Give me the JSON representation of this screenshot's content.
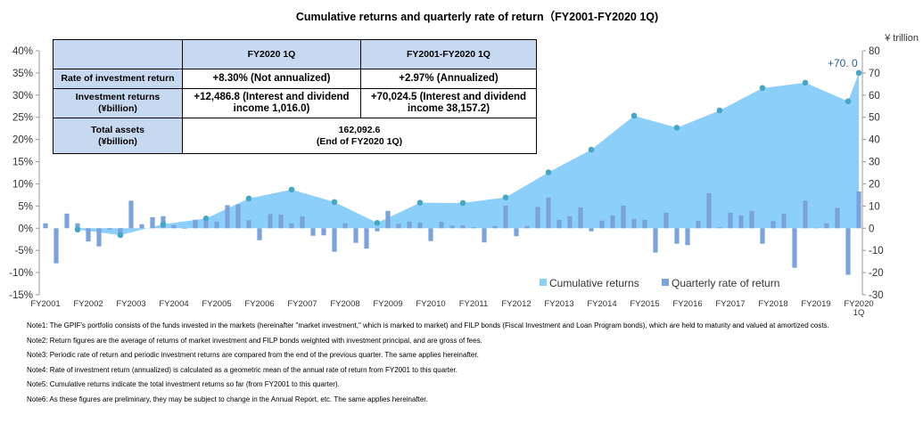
{
  "title": "Cumulative returns and quarterly rate of return（FY2001-FY2020 1Q)",
  "table": {
    "headers": [
      "",
      "FY2020 1Q",
      "FY2001-FY2020 1Q"
    ],
    "rows": [
      {
        "label": "Rate of investment return",
        "label2": "",
        "q": "+8.30% (Not annualized)",
        "q2": "",
        "cum": "+2.97% (Annualized)",
        "cum2": ""
      },
      {
        "label": "Investment returns",
        "label2": "(¥billion)",
        "q": "+12,486.8 (Interest and dividend",
        "q2": "income 1,016.0)",
        "cum": "+70,024.5 (Interest and dividend",
        "cum2": "income 38,157.2)"
      }
    ],
    "total": {
      "label": "Total assets",
      "label2": "(¥billion)",
      "value": "162,092.6",
      "value2": "(End of FY2020 1Q)"
    }
  },
  "chart_data": {
    "type": "bar+area",
    "title": "Cumulative returns and quarterly rate of return（FY2001-FY2020 1Q)",
    "left_axis": {
      "ylim": [
        -15,
        40
      ],
      "ticks": [
        "40%",
        "35%",
        "30%",
        "25%",
        "20%",
        "15%",
        "10%",
        "5%",
        "0%",
        "-5%",
        "-10%",
        "-15%"
      ]
    },
    "right_axis": {
      "label": "¥ trillion",
      "ylim": [
        -30,
        80
      ],
      "ticks": [
        "80",
        "70",
        "60",
        "50",
        "40",
        "30",
        "20",
        "10",
        "0",
        "-10",
        "-20",
        "-30"
      ]
    },
    "x_tick_labels": [
      "FY2001",
      "FY2002",
      "FY2003",
      "FY2004",
      "FY2005",
      "FY2006",
      "FY2007",
      "FY2008",
      "FY2009",
      "FY2010",
      "FY2011",
      "FY2012",
      "FY2013",
      "FY2014",
      "FY2015",
      "FY2016",
      "FY2017",
      "FY2018",
      "FY2019",
      "FY2020"
    ],
    "x_last_sublabel": "1Q",
    "legend": {
      "placement": "bottom-right",
      "items": [
        "Cumulative returns",
        "Quarterly rate of return"
      ]
    },
    "series": [
      {
        "name": "Quarterly rate of return",
        "axis": "left",
        "unit": "%",
        "color": "#7aa3dc",
        "values": [
          1.1,
          -7.9,
          3.3,
          1.1,
          -3.0,
          -4.1,
          -0.3,
          -1.5,
          6.2,
          0.9,
          2.5,
          2.7,
          0.7,
          -0.1,
          1.9,
          2.0,
          1.5,
          5.2,
          5.4,
          1.8,
          -2.7,
          3.2,
          3.1,
          1.1,
          2.7,
          -1.7,
          -1.6,
          -5.3,
          1.1,
          -3.3,
          -4.6,
          -0.7,
          3.9,
          1.0,
          1.5,
          1.3,
          -2.9,
          1.5,
          0.6,
          0.7,
          0.2,
          -3.2,
          0.5,
          5.1,
          -1.8,
          0.5,
          4.8,
          6.9,
          1.9,
          2.7,
          4.7,
          -0.7,
          1.7,
          2.9,
          5.1,
          2.1,
          1.9,
          -5.5,
          3.5,
          -3.5,
          -3.8,
          1.7,
          7.9,
          0.2,
          3.5,
          2.9,
          3.9,
          -3.5,
          1.6,
          3.3,
          -8.9,
          6.2,
          0.1,
          1.1,
          4.6,
          -10.5,
          8.3
        ]
      },
      {
        "name": "Cumulative returns",
        "axis": "right",
        "unit": "¥ trillion",
        "color": "#8dcffb",
        "marker_color": "#45a7c3",
        "points": [
          "FY2001",
          "FY2002",
          "FY2003",
          "FY2004",
          "FY2005",
          "FY2006",
          "FY2007",
          "FY2008",
          "FY2009",
          "FY2010",
          "FY2011",
          "FY2012",
          "FY2013",
          "FY2014",
          "FY2015",
          "FY2016",
          "FY2017",
          "FY2018",
          "FY2019",
          "FY2020 1Q"
        ],
        "values": [
          -0.6,
          -3.1,
          1.8,
          4.4,
          13.4,
          17.4,
          11.8,
          2.4,
          11.5,
          11.4,
          13.9,
          25.2,
          35.4,
          50.7,
          45.3,
          53.1,
          63.2,
          65.6,
          57.2,
          70.0
        ]
      }
    ],
    "annotation": "+70. 0",
    "annotation_color": "#2e5c8a",
    "grid": false
  },
  "notes": [
    "Note1: The GPIF's portfolio consists of the funds invested in the markets (hereinafter \"market investment,\" which is marked to market) and FILP bonds (Fiscal Investment and Loan Program bonds), which are held to maturity and valued at amortized costs.",
    "Note2: Return figures are the average of returns of market investment and FILP bonds weighted with investment principal, and are gross of fees.",
    "Note3: Periodic rate of return and periodic investment returns are compared from the end of the previous quarter. The same applies hereinafter.",
    "Note4: Rate of investment return (annualized) is calculated as a geometric mean of the annual rate of return from FY2001 to this quarter.",
    "Note5: Cumulative returns indicate the total investment returns so far (from FY2001 to this quarter).",
    "Note6: As these figures are preliminary, they may be subject to change in the Annual Report, etc. The same applies hereinafter."
  ]
}
